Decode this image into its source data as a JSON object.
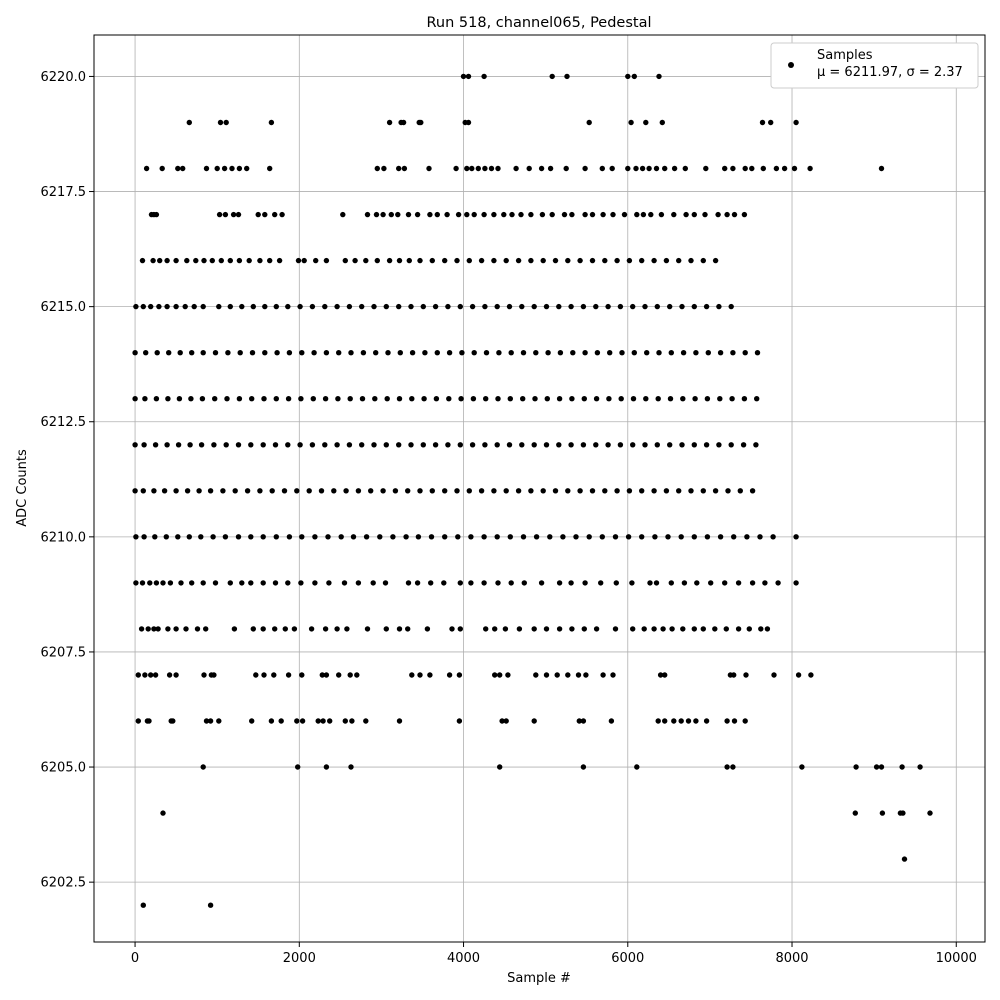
{
  "chart_data": {
    "type": "scatter",
    "title": "Run 518, channel065, Pedestal",
    "xlabel": "Sample #",
    "ylabel": "ADC Counts",
    "xlim": [
      -500,
      10350
    ],
    "ylim": [
      6201.2,
      6220.9
    ],
    "x_ticks": [
      0,
      2000,
      4000,
      6000,
      8000,
      10000
    ],
    "x_tick_labels": [
      "0",
      "2000",
      "4000",
      "6000",
      "8000",
      "10000"
    ],
    "y_ticks": [
      6202.5,
      6205.0,
      6207.5,
      6210.0,
      6212.5,
      6215.0,
      6217.5,
      6220.0
    ],
    "y_tick_labels": [
      "6202.5",
      "6205.0",
      "6207.5",
      "6210.0",
      "6212.5",
      "6215.0",
      "6217.5",
      "6220.0"
    ],
    "grid": true,
    "legend": {
      "placement": "top-right",
      "entries": [
        "Samples",
        "μ = 6211.97, σ = 2.37"
      ]
    },
    "series": [
      {
        "name": "Samples",
        "color": "#000000",
        "x_range": [
          0,
          9860
        ],
        "points_per_level": [
          {
            "y": 6202,
            "x": [
              100,
              920
            ]
          },
          {
            "y": 6203,
            "x": [
              9370
            ]
          },
          {
            "y": 6204,
            "x": [
              340,
              8770,
              9100,
              9320,
              9350,
              9680
            ]
          },
          {
            "y": 6205,
            "x": [
              830,
              1980,
              2330,
              2630,
              4440,
              5460,
              6110,
              7210,
              7280,
              8120,
              8780,
              9030,
              9090,
              9340,
              9560
            ]
          },
          {
            "y": 6206,
            "x": [
              40,
              150,
              170,
              440,
              460,
              870,
              920,
              1020,
              1420,
              1660,
              1780,
              1970,
              2040,
              2230,
              2290,
              2370,
              2560,
              2640,
              2810,
              3220,
              3950,
              4470,
              4520,
              4860,
              5410,
              5460,
              5800,
              6370,
              6450,
              6560,
              6650,
              6740,
              6830,
              6960,
              7210,
              7300,
              7430
            ]
          },
          {
            "y": 6207,
            "x": [
              40,
              120,
              190,
              250,
              420,
              500,
              840,
              930,
              960,
              1470,
              1570,
              1690,
              1870,
              2030,
              2280,
              2330,
              2480,
              2620,
              2700,
              3370,
              3470,
              3590,
              3830,
              3950,
              4380,
              4440,
              4540,
              4880,
              5010,
              5140,
              5270,
              5400,
              5490,
              5700,
              5820,
              6400,
              6450,
              7250,
              7290,
              7440,
              7780,
              8080,
              8230
            ]
          },
          {
            "y": 6208,
            "x": [
              80,
              160,
              230,
              280,
              400,
              500,
              620,
              760,
              860,
              1210,
              1440,
              1560,
              1700,
              1830,
              1940,
              2150,
              2320,
              2460,
              2580,
              2830,
              3060,
              3220,
              3320,
              3560,
              3860,
              3960,
              4270,
              4380,
              4510,
              4680,
              4860,
              5010,
              5170,
              5320,
              5470,
              5620,
              5850,
              6060,
              6200,
              6320,
              6430,
              6540,
              6670,
              6810,
              6920,
              7060,
              7200,
              7350,
              7480,
              7620,
              7700
            ]
          },
          {
            "y": 6209,
            "x": [
              10,
              90,
              180,
              260,
              340,
              430,
              560,
              690,
              830,
              980,
              1160,
              1300,
              1410,
              1560,
              1710,
              1860,
              2020,
              2190,
              2360,
              2550,
              2720,
              2900,
              3050,
              3330,
              3440,
              3600,
              3760,
              3960,
              4090,
              4250,
              4420,
              4580,
              4740,
              4950,
              5170,
              5310,
              5480,
              5670,
              5860,
              6050,
              6270,
              6350,
              6530,
              6690,
              6840,
              7010,
              7180,
              7350,
              7520,
              7670,
              7830,
              8050
            ]
          },
          {
            "y": 6210,
            "x": [
              10,
              110,
              240,
              380,
              520,
              660,
              800,
              950,
              1100,
              1260,
              1410,
              1560,
              1720,
              1880,
              2030,
              2190,
              2350,
              2510,
              2660,
              2820,
              2980,
              3140,
              3300,
              3450,
              3610,
              3770,
              3930,
              4090,
              4250,
              4410,
              4570,
              4730,
              4890,
              5050,
              5210,
              5370,
              5530,
              5690,
              5850,
              6010,
              6170,
              6330,
              6490,
              6650,
              6810,
              6970,
              7130,
              7290,
              7450,
              7610,
              7770,
              8050
            ]
          },
          {
            "y": 6211,
            "x": [
              0,
              100,
              230,
              360,
              500,
              640,
              780,
              920,
              1070,
              1220,
              1370,
              1520,
              1670,
              1820,
              1970,
              2120,
              2270,
              2420,
              2570,
              2720,
              2870,
              3020,
              3170,
              3320,
              3470,
              3620,
              3770,
              3920,
              4070,
              4220,
              4370,
              4520,
              4670,
              4820,
              4970,
              5120,
              5270,
              5420,
              5570,
              5720,
              5870,
              6020,
              6170,
              6320,
              6470,
              6620,
              6770,
              6920,
              7070,
              7220,
              7370,
              7520
            ]
          },
          {
            "y": 6212,
            "x": [
              0,
              110,
              250,
              390,
              530,
              670,
              810,
              960,
              1110,
              1260,
              1410,
              1560,
              1710,
              1860,
              2010,
              2160,
              2310,
              2460,
              2610,
              2760,
              2910,
              3060,
              3210,
              3360,
              3510,
              3660,
              3810,
              3960,
              4110,
              4260,
              4410,
              4560,
              4710,
              4860,
              5010,
              5160,
              5310,
              5460,
              5610,
              5760,
              5910,
              6060,
              6210,
              6360,
              6510,
              6660,
              6810,
              6960,
              7110,
              7260,
              7410,
              7560
            ]
          },
          {
            "y": 6213,
            "x": [
              0,
              120,
              260,
              400,
              540,
              680,
              820,
              970,
              1120,
              1270,
              1420,
              1570,
              1720,
              1870,
              2020,
              2170,
              2320,
              2470,
              2620,
              2770,
              2920,
              3070,
              3220,
              3370,
              3520,
              3670,
              3820,
              3970,
              4120,
              4270,
              4420,
              4570,
              4720,
              4870,
              5020,
              5170,
              5320,
              5470,
              5620,
              5770,
              5920,
              6070,
              6220,
              6370,
              6520,
              6670,
              6820,
              6970,
              7120,
              7270,
              7420,
              7570
            ]
          },
          {
            "y": 6214,
            "x": [
              0,
              130,
              270,
              410,
              550,
              690,
              830,
              980,
              1130,
              1280,
              1430,
              1580,
              1730,
              1880,
              2030,
              2180,
              2330,
              2480,
              2630,
              2780,
              2930,
              3080,
              3230,
              3380,
              3530,
              3680,
              3830,
              3980,
              4130,
              4280,
              4430,
              4580,
              4730,
              4880,
              5030,
              5180,
              5330,
              5480,
              5630,
              5780,
              5930,
              6080,
              6230,
              6380,
              6530,
              6680,
              6830,
              6980,
              7130,
              7280,
              7430,
              7580
            ]
          },
          {
            "y": 6215,
            "x": [
              10,
              100,
              190,
              290,
              390,
              500,
              610,
              720,
              830,
              1020,
              1160,
              1300,
              1440,
              1580,
              1720,
              1860,
              2010,
              2160,
              2310,
              2460,
              2610,
              2760,
              2910,
              3060,
              3210,
              3360,
              3510,
              3660,
              3810,
              3960,
              4110,
              4260,
              4410,
              4560,
              4710,
              4860,
              5010,
              5160,
              5310,
              5460,
              5610,
              5760,
              5910,
              6060,
              6210,
              6360,
              6510,
              6660,
              6810,
              6960,
              7110,
              7260
            ]
          },
          {
            "y": 6216,
            "x": [
              90,
              220,
              300,
              390,
              500,
              630,
              740,
              840,
              940,
              1050,
              1160,
              1270,
              1390,
              1520,
              1640,
              1760,
              1990,
              2060,
              2200,
              2330,
              2560,
              2680,
              2810,
              2950,
              3100,
              3220,
              3340,
              3470,
              3620,
              3770,
              3920,
              4070,
              4220,
              4370,
              4520,
              4670,
              4820,
              4970,
              5120,
              5270,
              5420,
              5570,
              5720,
              5870,
              6020,
              6170,
              6320,
              6470,
              6620,
              6770,
              6920,
              7070
            ]
          },
          {
            "y": 6217,
            "x": [
              200,
              230,
              260,
              1030,
              1100,
              1200,
              1260,
              1500,
              1580,
              1700,
              1790,
              2530,
              2830,
              2940,
              3020,
              3120,
              3200,
              3330,
              3440,
              3590,
              3680,
              3800,
              3940,
              4040,
              4130,
              4250,
              4370,
              4490,
              4590,
              4700,
              4820,
              4960,
              5080,
              5230,
              5320,
              5480,
              5570,
              5700,
              5820,
              5960,
              6110,
              6190,
              6280,
              6410,
              6560,
              6710,
              6810,
              6940,
              7100,
              7210,
              7300,
              7420
            ]
          },
          {
            "y": 6218,
            "x": [
              140,
              330,
              520,
              580,
              870,
              1000,
              1090,
              1180,
              1270,
              1360,
              1640,
              2950,
              3030,
              3210,
              3280,
              3580,
              3910,
              4040,
              4100,
              4180,
              4260,
              4340,
              4420,
              4640,
              4800,
              4950,
              5060,
              5250,
              5480,
              5690,
              5810,
              6000,
              6100,
              6180,
              6260,
              6350,
              6450,
              6570,
              6700,
              6950,
              7180,
              7280,
              7430,
              7510,
              7650,
              7810,
              7910,
              8030,
              8220,
              9090
            ]
          },
          {
            "y": 6219,
            "x": [
              660,
              1040,
              1110,
              1660,
              3100,
              3240,
              3270,
              3460,
              3480,
              4020,
              4060,
              5530,
              6040,
              6220,
              6420,
              7640,
              7740,
              8050
            ]
          },
          {
            "y": 6220,
            "x": [
              4000,
              4060,
              4250,
              5080,
              5260,
              6000,
              6080,
              6380
            ]
          }
        ]
      }
    ]
  }
}
